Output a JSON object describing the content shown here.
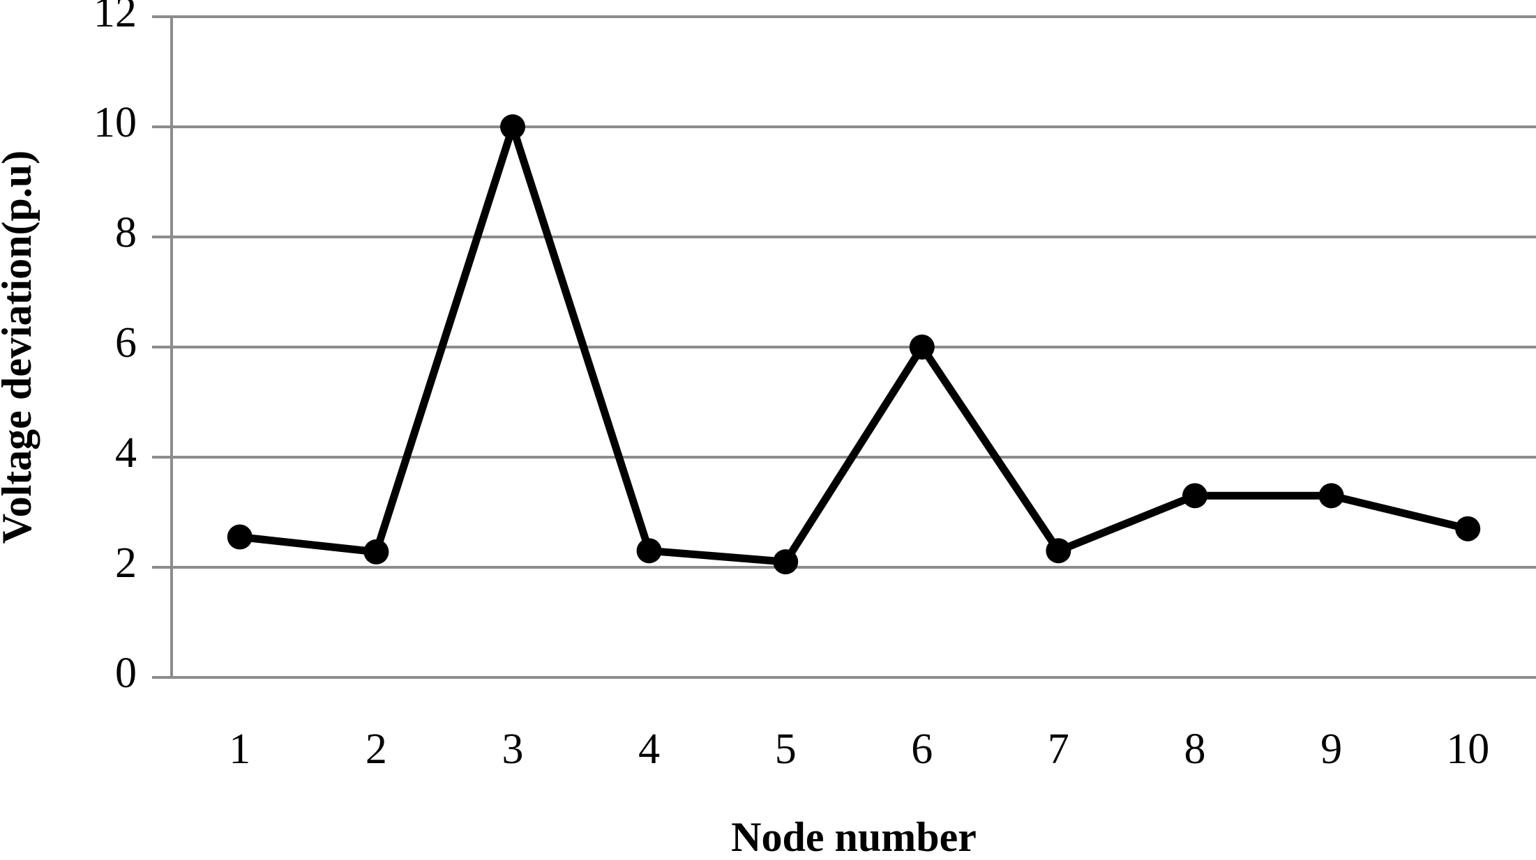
{
  "chart_data": {
    "type": "line",
    "x_label": "Node number",
    "y_label": "Voltage deviation(p.u)",
    "categories": [
      "1",
      "2",
      "3",
      "4",
      "5",
      "6",
      "7",
      "8",
      "9",
      "10"
    ],
    "series": [
      {
        "name": "Voltage deviation",
        "color": "#000000",
        "values": [
          2.55,
          2.28,
          10,
          2.3,
          2.1,
          6.0,
          2.3,
          3.3,
          3.3,
          2.7
        ]
      }
    ],
    "ylim": [
      0,
      12
    ],
    "yticks": [
      0,
      2,
      4,
      6,
      8,
      10,
      12
    ],
    "grid": true
  }
}
